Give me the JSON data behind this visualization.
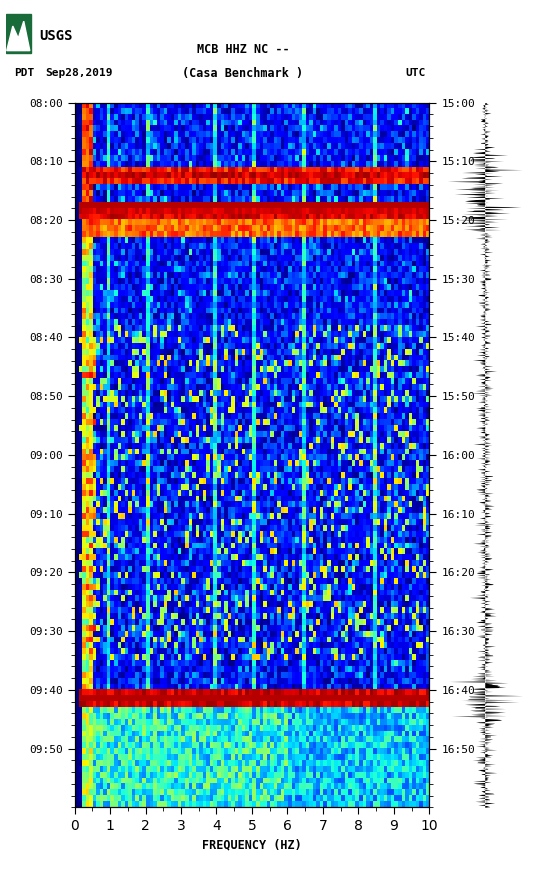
{
  "title_line1": "MCB HHZ NC --",
  "title_line2": "(Casa Benchmark )",
  "left_label": "PDT",
  "left_date": "Sep28,2019",
  "right_label": "UTC",
  "xlabel": "FREQUENCY (HZ)",
  "freq_min": 0,
  "freq_max": 10,
  "freq_ticks": [
    0,
    1,
    2,
    3,
    4,
    5,
    6,
    7,
    8,
    9,
    10
  ],
  "pdt_ticks": [
    "08:00",
    "08:10",
    "08:20",
    "08:30",
    "08:40",
    "08:50",
    "09:00",
    "09:10",
    "09:20",
    "09:30",
    "09:40",
    "09:50"
  ],
  "utc_ticks": [
    "15:00",
    "15:10",
    "15:20",
    "15:30",
    "15:40",
    "15:50",
    "16:00",
    "16:10",
    "16:20",
    "16:30",
    "16:40",
    "16:50"
  ],
  "tick_positions": [
    0,
    10,
    20,
    30,
    40,
    50,
    60,
    70,
    80,
    90,
    100,
    110
  ],
  "background_color": "#ffffff",
  "usgs_green": "#1a6b3a",
  "fig_width": 5.52,
  "fig_height": 8.92,
  "seed": 42,
  "n_time_bins": 120,
  "n_freq_bins": 100
}
